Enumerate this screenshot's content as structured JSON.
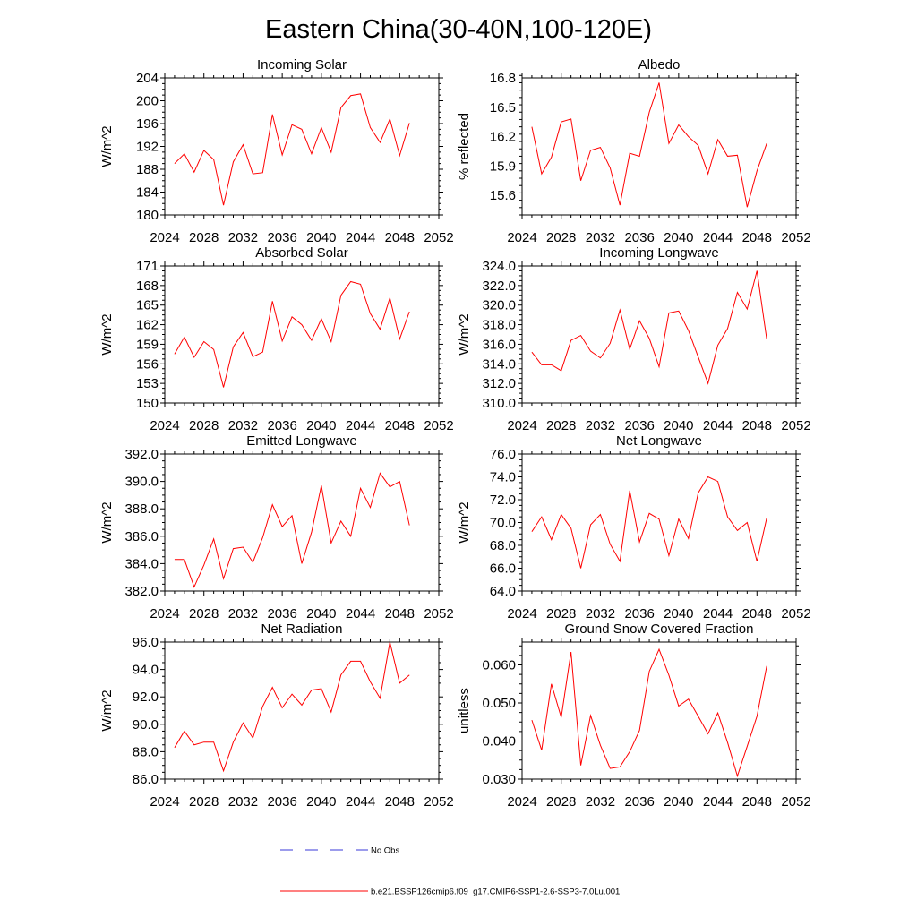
{
  "figure": {
    "title": "Eastern China(30-40N,100-120E)"
  },
  "legend": {
    "obs_label": "No Obs",
    "obs_color": "#3a3ad8",
    "model_label": "b.e21.BSSP126cmip6.f09_g17.CMIP6-SSP1-2.6-SSP3-7.0Lu.001",
    "model_color": "#ff0000"
  },
  "chart_data": [
    {
      "type": "line",
      "title": "Incoming Solar",
      "ylabel": "W/m^2",
      "xlim": [
        2024,
        2052
      ],
      "ylim": [
        180,
        204
      ],
      "xticks": [
        "2024",
        "2028",
        "2032",
        "2036",
        "2040",
        "2044",
        "2048",
        "2052"
      ],
      "yticks": [
        "180",
        "184",
        "188",
        "192",
        "196",
        "200",
        "204"
      ],
      "x": [
        2025,
        2026,
        2027,
        2028,
        2029,
        2030,
        2031,
        2032,
        2033,
        2034,
        2035,
        2036,
        2037,
        2038,
        2039,
        2040,
        2041,
        2042,
        2043,
        2044,
        2045,
        2046,
        2047,
        2048,
        2049
      ],
      "series": [
        {
          "color": "#ff0000",
          "values": [
            189.0,
            190.7,
            187.5,
            191.3,
            189.7,
            181.7,
            189.3,
            192.3,
            187.2,
            187.4,
            197.6,
            190.5,
            195.8,
            195.0,
            190.7,
            195.3,
            191.0,
            198.8,
            200.9,
            201.2,
            195.3,
            192.7,
            196.8,
            190.4,
            196.1
          ]
        }
      ]
    },
    {
      "type": "line",
      "title": "Albedo",
      "ylabel": "% reflected",
      "xlim": [
        2024,
        2052
      ],
      "ylim": [
        15.4,
        16.8
      ],
      "xticks": [
        "2024",
        "2028",
        "2032",
        "2036",
        "2040",
        "2044",
        "2048",
        "2052"
      ],
      "yticks": [
        "15.6",
        "15.9",
        "16.2",
        "16.5",
        "16.8"
      ],
      "x": [
        2025,
        2026,
        2027,
        2028,
        2029,
        2030,
        2031,
        2032,
        2033,
        2034,
        2035,
        2036,
        2037,
        2038,
        2039,
        2040,
        2041,
        2042,
        2043,
        2044,
        2045,
        2046,
        2047,
        2048,
        2049
      ],
      "series": [
        {
          "color": "#ff0000",
          "values": [
            16.3,
            15.82,
            15.99,
            16.35,
            16.38,
            15.75,
            16.06,
            16.09,
            15.88,
            15.5,
            16.03,
            16.0,
            16.45,
            16.75,
            16.13,
            16.32,
            16.2,
            16.11,
            15.82,
            16.17,
            16.0,
            16.01,
            15.48,
            15.85,
            16.13
          ]
        }
      ]
    },
    {
      "type": "line",
      "title": "Absorbed Solar",
      "ylabel": "W/m^2",
      "xlim": [
        2024,
        2052
      ],
      "ylim": [
        150,
        171
      ],
      "xticks": [
        "2024",
        "2028",
        "2032",
        "2036",
        "2040",
        "2044",
        "2048",
        "2052"
      ],
      "yticks": [
        "150",
        "153",
        "156",
        "159",
        "162",
        "165",
        "168",
        "171"
      ],
      "x": [
        2025,
        2026,
        2027,
        2028,
        2029,
        2030,
        2031,
        2032,
        2033,
        2034,
        2035,
        2036,
        2037,
        2038,
        2039,
        2040,
        2041,
        2042,
        2043,
        2044,
        2045,
        2046,
        2047,
        2048,
        2049
      ],
      "series": [
        {
          "color": "#ff0000",
          "values": [
            157.5,
            160.1,
            157.0,
            159.4,
            158.2,
            152.4,
            158.6,
            160.8,
            157.1,
            157.8,
            165.6,
            159.5,
            163.2,
            162.0,
            159.6,
            162.9,
            159.4,
            166.5,
            168.6,
            168.2,
            163.7,
            161.3,
            166.1,
            159.8,
            164.0
          ]
        }
      ]
    },
    {
      "type": "line",
      "title": "Incoming Longwave",
      "ylabel": "W/m^2",
      "xlim": [
        2024,
        2052
      ],
      "ylim": [
        310.0,
        324.0
      ],
      "xticks": [
        "2024",
        "2028",
        "2032",
        "2036",
        "2040",
        "2044",
        "2048",
        "2052"
      ],
      "yticks": [
        "310.0",
        "312.0",
        "314.0",
        "316.0",
        "318.0",
        "320.0",
        "322.0",
        "324.0"
      ],
      "x": [
        2025,
        2026,
        2027,
        2028,
        2029,
        2030,
        2031,
        2032,
        2033,
        2034,
        2035,
        2036,
        2037,
        2038,
        2039,
        2040,
        2041,
        2042,
        2043,
        2044,
        2045,
        2046,
        2047,
        2048,
        2049
      ],
      "series": [
        {
          "color": "#ff0000",
          "values": [
            315.2,
            313.9,
            313.9,
            313.3,
            316.4,
            316.9,
            315.3,
            314.6,
            316.1,
            319.5,
            315.5,
            318.4,
            316.6,
            313.7,
            319.2,
            319.4,
            317.4,
            314.7,
            312.0,
            315.9,
            317.6,
            321.3,
            319.6,
            323.5,
            316.5
          ]
        }
      ]
    },
    {
      "type": "line",
      "title": "Emitted Longwave",
      "ylabel": "W/m^2",
      "xlim": [
        2024,
        2052
      ],
      "ylim": [
        382.0,
        392.0
      ],
      "xticks": [
        "2024",
        "2028",
        "2032",
        "2036",
        "2040",
        "2044",
        "2048",
        "2052"
      ],
      "yticks": [
        "382.0",
        "384.0",
        "386.0",
        "388.0",
        "390.0",
        "392.0"
      ],
      "x": [
        2025,
        2026,
        2027,
        2028,
        2029,
        2030,
        2031,
        2032,
        2033,
        2034,
        2035,
        2036,
        2037,
        2038,
        2039,
        2040,
        2041,
        2042,
        2043,
        2044,
        2045,
        2046,
        2047,
        2048,
        2049
      ],
      "series": [
        {
          "color": "#ff0000",
          "values": [
            384.3,
            384.3,
            382.3,
            383.9,
            385.8,
            382.9,
            385.1,
            385.2,
            384.1,
            385.9,
            388.3,
            386.7,
            387.5,
            384.0,
            386.3,
            389.7,
            385.5,
            387.1,
            386.0,
            389.5,
            388.1,
            390.6,
            389.6,
            390.0,
            386.8
          ]
        }
      ]
    },
    {
      "type": "line",
      "title": "Net Longwave",
      "ylabel": "W/m^2",
      "xlim": [
        2024,
        2052
      ],
      "ylim": [
        64.0,
        76.0
      ],
      "xticks": [
        "2024",
        "2028",
        "2032",
        "2036",
        "2040",
        "2044",
        "2048",
        "2052"
      ],
      "yticks": [
        "64.0",
        "66.0",
        "68.0",
        "70.0",
        "72.0",
        "74.0",
        "76.0"
      ],
      "x": [
        2025,
        2026,
        2027,
        2028,
        2029,
        2030,
        2031,
        2032,
        2033,
        2034,
        2035,
        2036,
        2037,
        2038,
        2039,
        2040,
        2041,
        2042,
        2043,
        2044,
        2045,
        2046,
        2047,
        2048,
        2049
      ],
      "series": [
        {
          "color": "#ff0000",
          "values": [
            69.2,
            70.5,
            68.5,
            70.7,
            69.5,
            66.0,
            69.8,
            70.7,
            68.1,
            66.6,
            72.8,
            68.3,
            70.8,
            70.3,
            67.1,
            70.3,
            68.6,
            72.6,
            74.0,
            73.6,
            70.5,
            69.3,
            70.0,
            66.6,
            70.4
          ]
        }
      ]
    },
    {
      "type": "line",
      "title": "Net Radiation",
      "ylabel": "W/m^2",
      "xlim": [
        2024,
        2052
      ],
      "ylim": [
        86.0,
        96.0
      ],
      "xticks": [
        "2024",
        "2028",
        "2032",
        "2036",
        "2040",
        "2044",
        "2048",
        "2052"
      ],
      "yticks": [
        "86.0",
        "88.0",
        "90.0",
        "92.0",
        "94.0",
        "96.0"
      ],
      "x": [
        2025,
        2026,
        2027,
        2028,
        2029,
        2030,
        2031,
        2032,
        2033,
        2034,
        2035,
        2036,
        2037,
        2038,
        2039,
        2040,
        2041,
        2042,
        2043,
        2044,
        2045,
        2046,
        2047,
        2048,
        2049
      ],
      "series": [
        {
          "color": "#ff0000",
          "values": [
            88.3,
            89.5,
            88.5,
            88.7,
            88.7,
            86.6,
            88.7,
            90.1,
            89.0,
            91.3,
            92.7,
            91.2,
            92.2,
            91.4,
            92.5,
            92.6,
            90.9,
            93.6,
            94.6,
            94.6,
            93.1,
            91.9,
            96.0,
            93.0,
            93.6
          ]
        }
      ]
    },
    {
      "type": "line",
      "title": "Ground Snow Covered Fraction",
      "ylabel": "unitless",
      "xlim": [
        2024,
        2052
      ],
      "ylim": [
        0.03,
        0.066
      ],
      "xticks": [
        "2024",
        "2028",
        "2032",
        "2036",
        "2040",
        "2044",
        "2048",
        "2052"
      ],
      "yticks": [
        "0.030",
        "0.040",
        "0.050",
        "0.060"
      ],
      "x": [
        2025,
        2026,
        2027,
        2028,
        2029,
        2030,
        2031,
        2032,
        2033,
        2034,
        2035,
        2036,
        2037,
        2038,
        2039,
        2040,
        2041,
        2042,
        2043,
        2044,
        2045,
        2046,
        2047,
        2048,
        2049
      ],
      "series": [
        {
          "color": "#ff0000",
          "values": [
            0.0455,
            0.0376,
            0.055,
            0.0462,
            0.0634,
            0.0336,
            0.0467,
            0.0389,
            0.0328,
            0.0332,
            0.0372,
            0.0428,
            0.0583,
            0.0641,
            0.0573,
            0.0492,
            0.051,
            0.0465,
            0.0419,
            0.0474,
            0.0396,
            0.0308,
            0.0386,
            0.0465,
            0.0597
          ]
        }
      ]
    }
  ]
}
